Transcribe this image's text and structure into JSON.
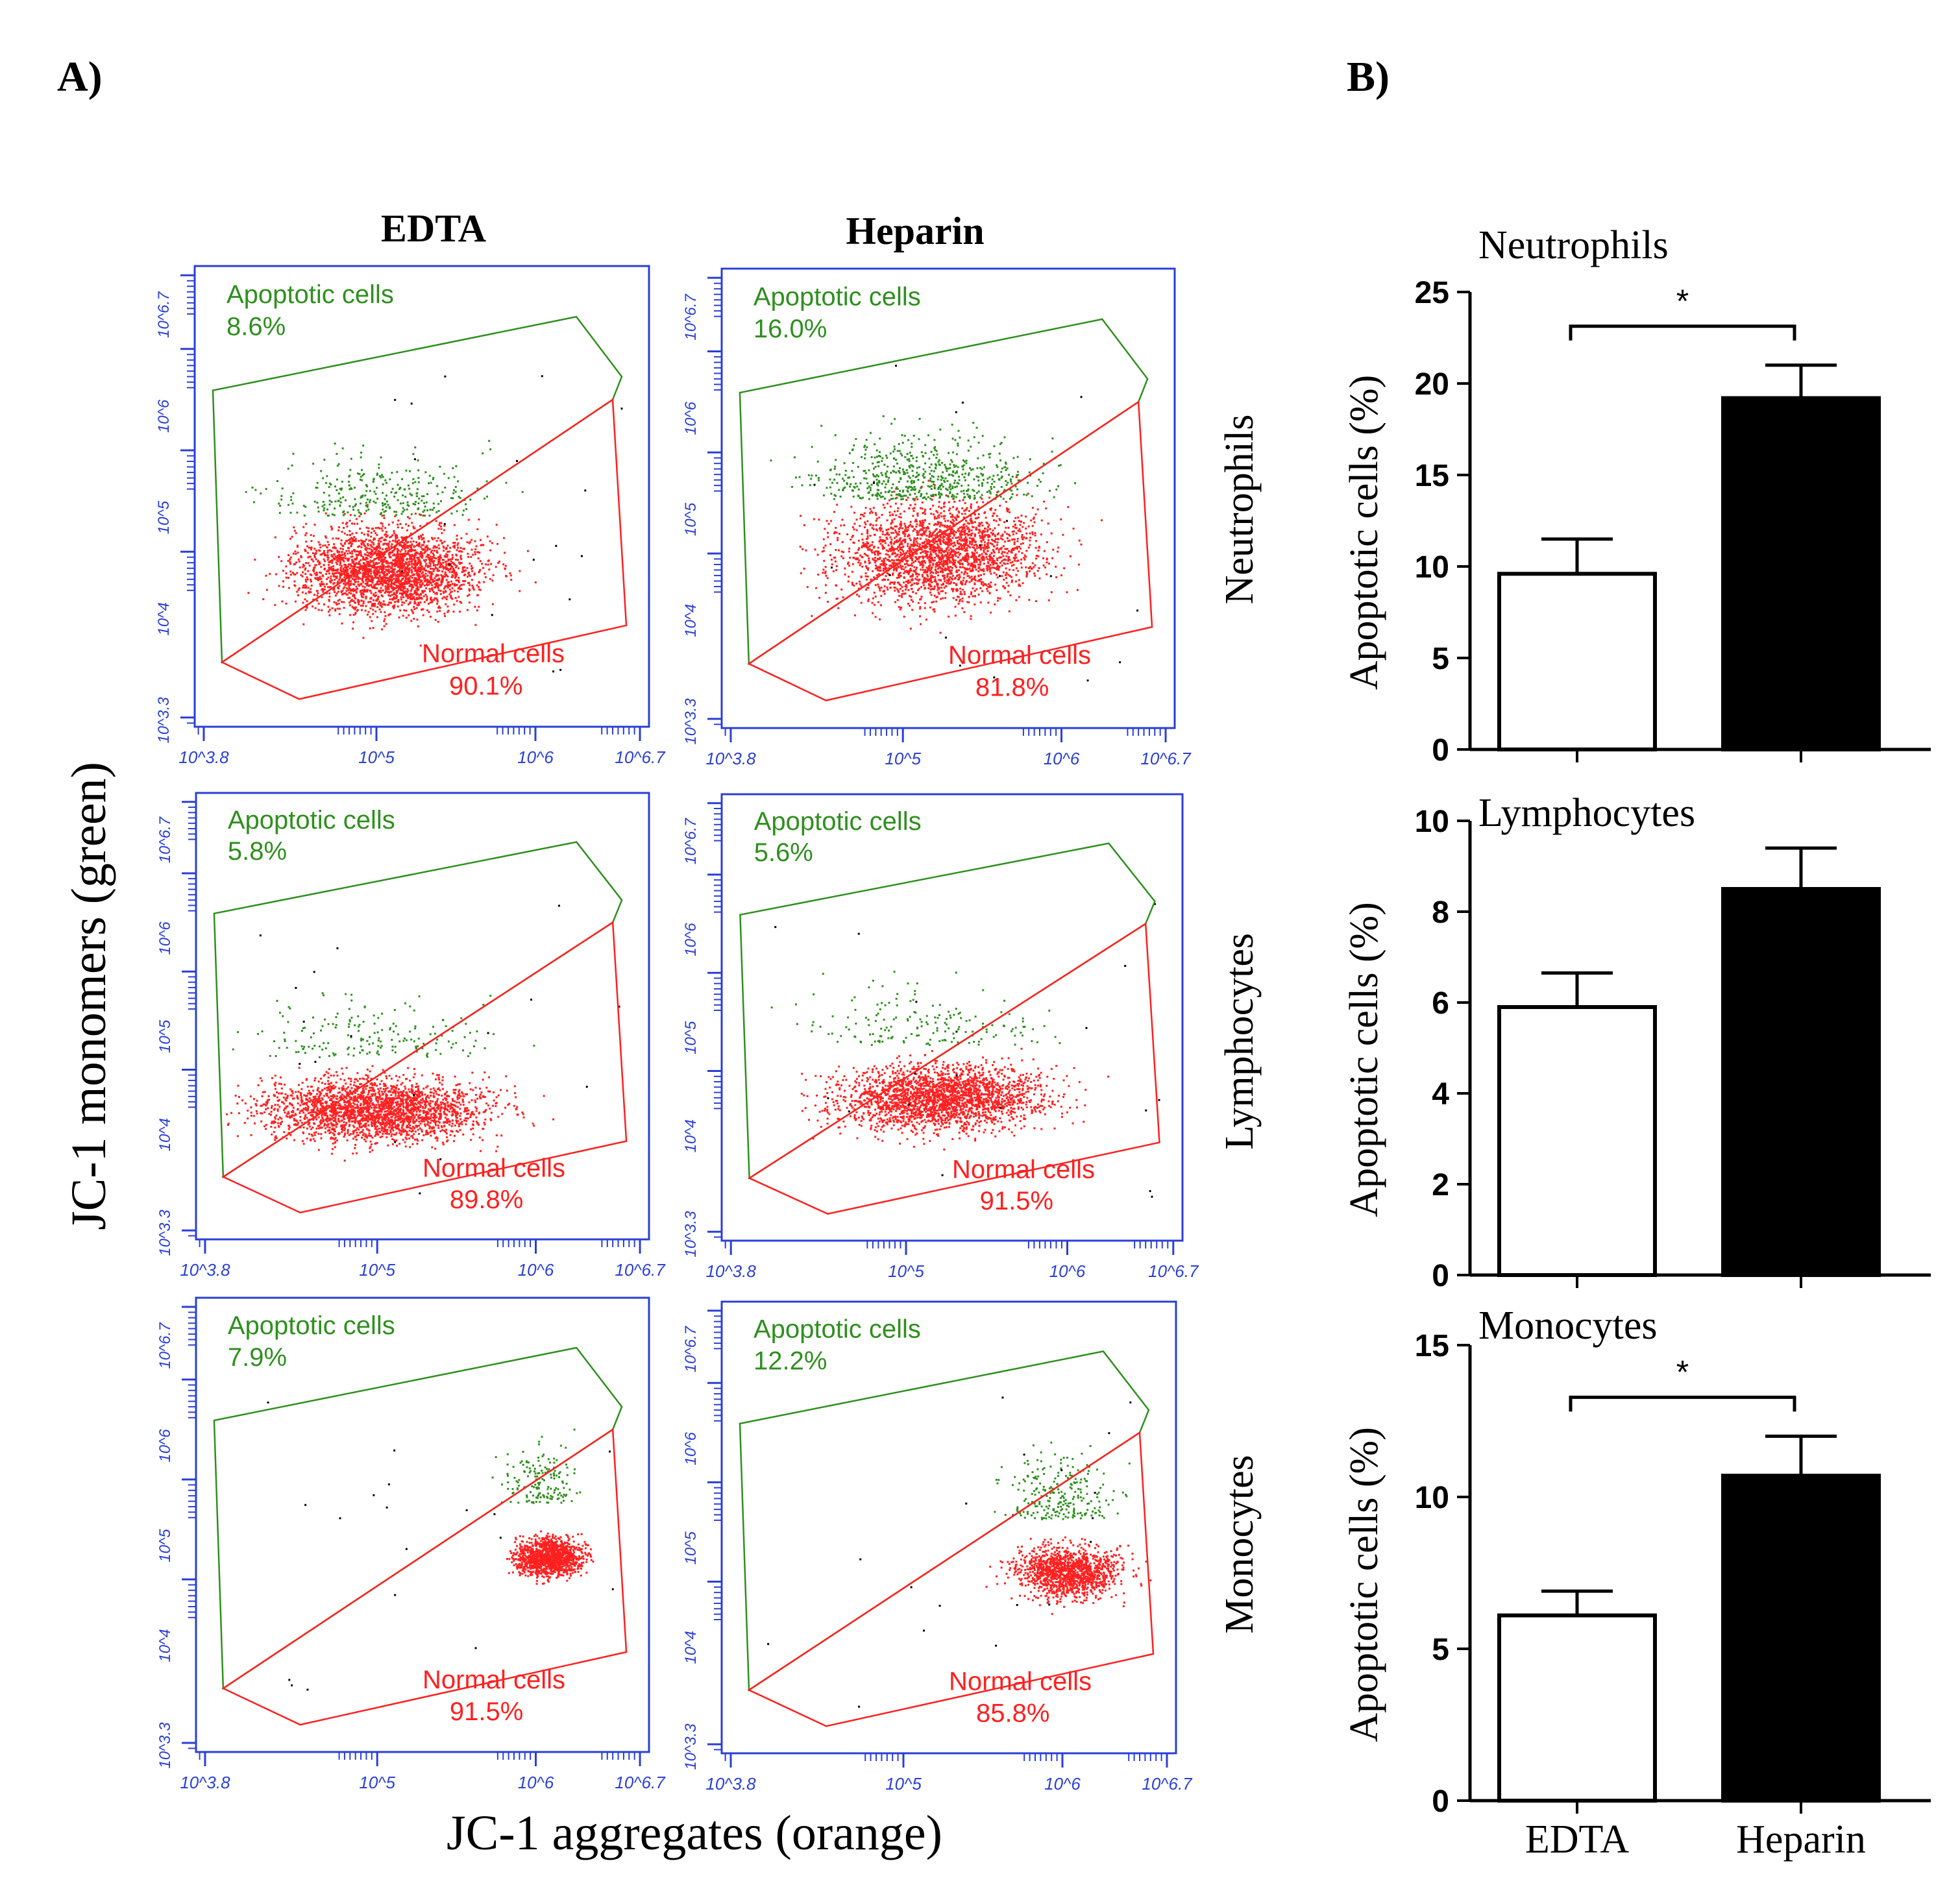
{
  "figure": {
    "panel_a_label": "A)",
    "panel_b_label": "B)",
    "col_headers": [
      "EDTA",
      "Heparin"
    ],
    "row_labels": [
      "Neutrophils",
      "Lymphocytes",
      "Monocytes"
    ],
    "y_axis_label": "JC-1 monomers (green)",
    "x_axis_label": "JC-1 aggregates (orange)",
    "gate_labels": {
      "apoptotic": "Apoptotic cells",
      "normal": "Normal cells"
    }
  },
  "colors": {
    "axis_blue": "#2b3fd4",
    "green": "#2f8f1f",
    "red": "#ff2020",
    "black": "#000000"
  },
  "flow_plots": [
    {
      "row": "Neutrophils",
      "group": "EDTA",
      "apoptotic": "8.6%",
      "normal": "90.1%"
    },
    {
      "row": "Neutrophils",
      "group": "Heparin",
      "apoptotic": "16.0%",
      "normal": "81.8%"
    },
    {
      "row": "Lymphocytes",
      "group": "EDTA",
      "apoptotic": "5.8%",
      "normal": "89.8%"
    },
    {
      "row": "Lymphocytes",
      "group": "Heparin",
      "apoptotic": "5.6%",
      "normal": "91.5%"
    },
    {
      "row": "Monocytes",
      "group": "EDTA",
      "apoptotic": "7.9%",
      "normal": "91.5%"
    },
    {
      "row": "Monocytes",
      "group": "Heparin",
      "apoptotic": "12.2%",
      "normal": "85.8%"
    }
  ],
  "flow_axis_ticks": {
    "x": [
      "10^3.8",
      "10^5",
      "10^6",
      "10^6.7"
    ],
    "y": [
      "10^3.3",
      "10^4",
      "10^5",
      "10^6",
      "10^6.7"
    ]
  },
  "chart_data": [
    {
      "type": "bar",
      "title": "Neutrophils",
      "categories": [
        "EDTA",
        "Heparin"
      ],
      "values": [
        9.6,
        19.2
      ],
      "errors": [
        1.9,
        1.8
      ],
      "ylabel": "Apoptotic cells (%)",
      "ylim": [
        0,
        25
      ],
      "yticks": [
        0,
        5,
        10,
        15,
        20,
        25
      ],
      "significance": "*"
    },
    {
      "type": "bar",
      "title": "Lymphocytes",
      "categories": [
        "EDTA",
        "Heparin"
      ],
      "values": [
        5.9,
        8.5
      ],
      "errors": [
        0.75,
        0.9
      ],
      "ylabel": "Apoptotic cells (%)",
      "ylim": [
        0,
        10
      ],
      "yticks": [
        0,
        2,
        4,
        6,
        8,
        10
      ],
      "significance": ""
    },
    {
      "type": "bar",
      "title": "Monocytes",
      "categories": [
        "EDTA",
        "Heparin"
      ],
      "values": [
        6.1,
        10.7
      ],
      "errors": [
        0.8,
        1.3
      ],
      "ylabel": "Apoptotic cells (%)",
      "ylim": [
        0,
        15
      ],
      "yticks": [
        0,
        5,
        10,
        15
      ],
      "significance": "*"
    }
  ],
  "bar_x_labels": [
    "EDTA",
    "Heparin"
  ]
}
